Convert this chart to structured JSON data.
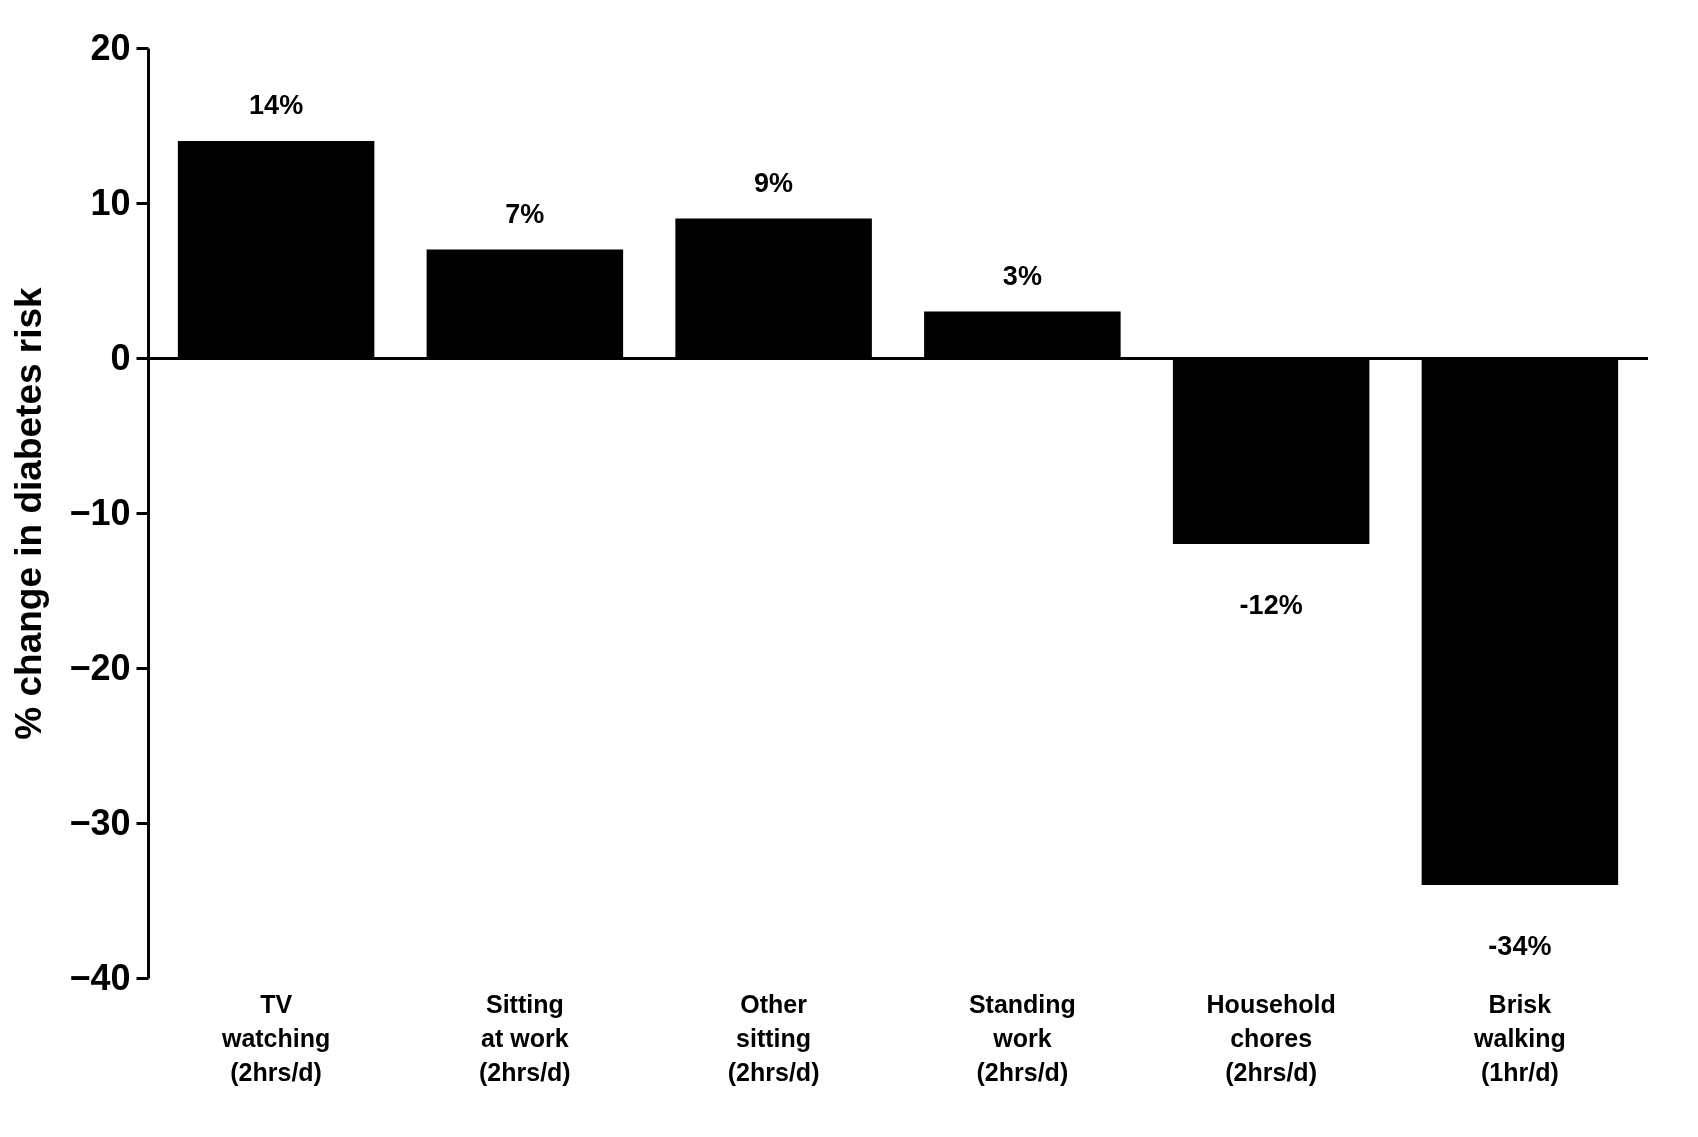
{
  "chart_data": {
    "type": "bar",
    "ylabel": "% change in diabetes risk",
    "categories": [
      "TV\nwatching\n(2hrs/d)",
      "Sitting\nat work\n(2hrs/d)",
      "Other\nsitting\n(2hrs/d)",
      "Standing\nwork\n(2hrs/d)",
      "Household\nchores\n(2hrs/d)",
      "Brisk\nwalking\n(1hr/d)"
    ],
    "values": [
      14,
      7,
      9,
      3,
      -12,
      -34
    ],
    "value_labels": [
      "14%",
      "7%",
      "9%",
      "3%",
      "-12%",
      "-34%"
    ],
    "color": "#000000",
    "ylim": [
      -40,
      20
    ],
    "yticks": [
      -40,
      -30,
      -20,
      -10,
      0,
      10,
      20
    ]
  }
}
